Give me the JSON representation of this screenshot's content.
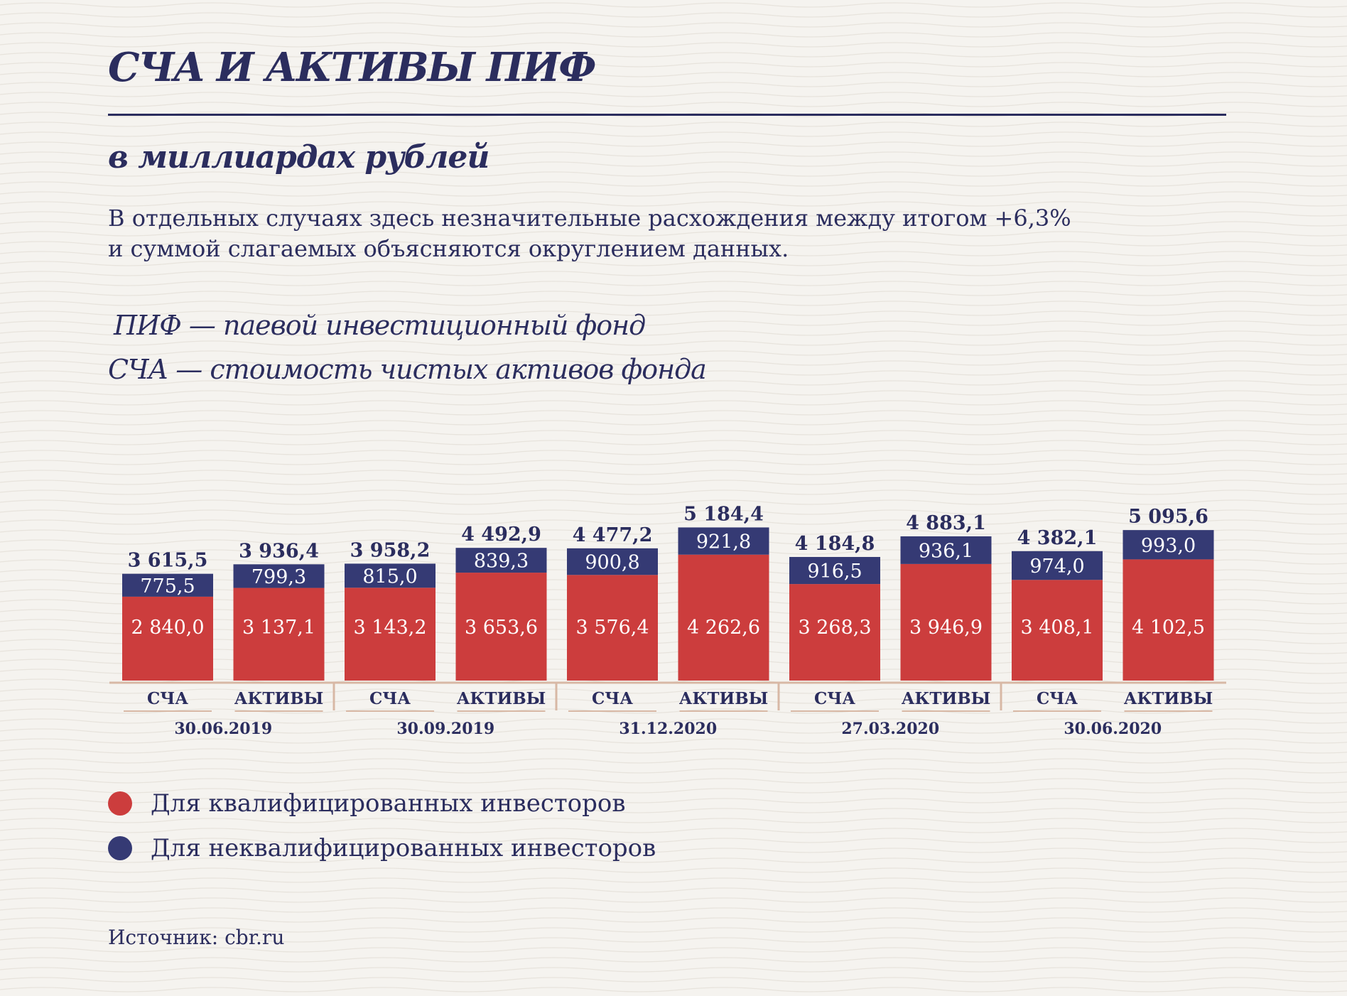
{
  "title": "СЧА И АКТИВЫ ПИФ",
  "subtitle": "в миллиардах рублей",
  "note": {
    "line1": "В отдельных случаях здесь незначительные расхождения между итогом +6,3%",
    "line2": "и суммой слагаемых объясняются округлением данных."
  },
  "definitions": {
    "pif": "ПИФ — паевой инвестиционный фонд",
    "scha": "СЧА —  стоимость чистых активов фонда"
  },
  "legend": {
    "qualified": "Для квалифицированных инвесторов",
    "unqualified": "Для неквалифицированных инвесторов"
  },
  "source": "Источник: cbr.ru",
  "colors": {
    "qualified": "#cc3d3d",
    "unqualified": "#353a74",
    "text": "#2b2d5e",
    "axis": "#d8b8a5"
  },
  "chart_data": {
    "type": "bar",
    "stacked": true,
    "groups": [
      {
        "date": "30.06.2019",
        "bars": [
          {
            "label": "СЧА",
            "qualified": 2840.0,
            "qualified_label": "2 840,0",
            "unqualified": 775.5,
            "unqualified_label": "775,5",
            "total": 3615.5,
            "total_label": "3 615,5"
          },
          {
            "label": "АКТИВЫ",
            "qualified": 3137.1,
            "qualified_label": "3 137,1",
            "unqualified": 799.3,
            "unqualified_label": "799,3",
            "total": 3936.4,
            "total_label": "3 936,4"
          }
        ]
      },
      {
        "date": "30.09.2019",
        "bars": [
          {
            "label": "СЧА",
            "qualified": 3143.2,
            "qualified_label": "3 143,2",
            "unqualified": 815.0,
            "unqualified_label": "815,0",
            "total": 3958.2,
            "total_label": "3 958,2"
          },
          {
            "label": "АКТИВЫ",
            "qualified": 3653.6,
            "qualified_label": "3 653,6",
            "unqualified": 839.3,
            "unqualified_label": "839,3",
            "total": 4492.9,
            "total_label": "4 492,9"
          }
        ]
      },
      {
        "date": "31.12.2020",
        "bars": [
          {
            "label": "СЧА",
            "qualified": 3576.4,
            "qualified_label": "3 576,4",
            "unqualified": 900.8,
            "unqualified_label": "900,8",
            "total": 4477.2,
            "total_label": "4 477,2"
          },
          {
            "label": "АКТИВЫ",
            "qualified": 4262.6,
            "qualified_label": "4 262,6",
            "unqualified": 921.8,
            "unqualified_label": "921,8",
            "total": 5184.4,
            "total_label": "5 184,4"
          }
        ]
      },
      {
        "date": "27.03.2020",
        "bars": [
          {
            "label": "СЧА",
            "qualified": 3268.3,
            "qualified_label": "3 268,3",
            "unqualified": 916.5,
            "unqualified_label": "916,5",
            "total": 4184.8,
            "total_label": "4 184,8"
          },
          {
            "label": "АКТИВЫ",
            "qualified": 3946.9,
            "qualified_label": "3 946,9",
            "unqualified": 936.1,
            "unqualified_label": "936,1",
            "total": 4883.1,
            "total_label": "4 883,1"
          }
        ]
      },
      {
        "date": "30.06.2020",
        "bars": [
          {
            "label": "СЧА",
            "qualified": 3408.1,
            "qualified_label": "3 408,1",
            "unqualified": 974.0,
            "unqualified_label": "974,0",
            "total": 4382.1,
            "total_label": "4 382,1"
          },
          {
            "label": "АКТИВЫ",
            "qualified": 4102.5,
            "qualified_label": "4 102,5",
            "unqualified": 993.0,
            "unqualified_label": "993,0",
            "total": 5095.6,
            "total_label": "5 095,6"
          }
        ]
      }
    ]
  }
}
